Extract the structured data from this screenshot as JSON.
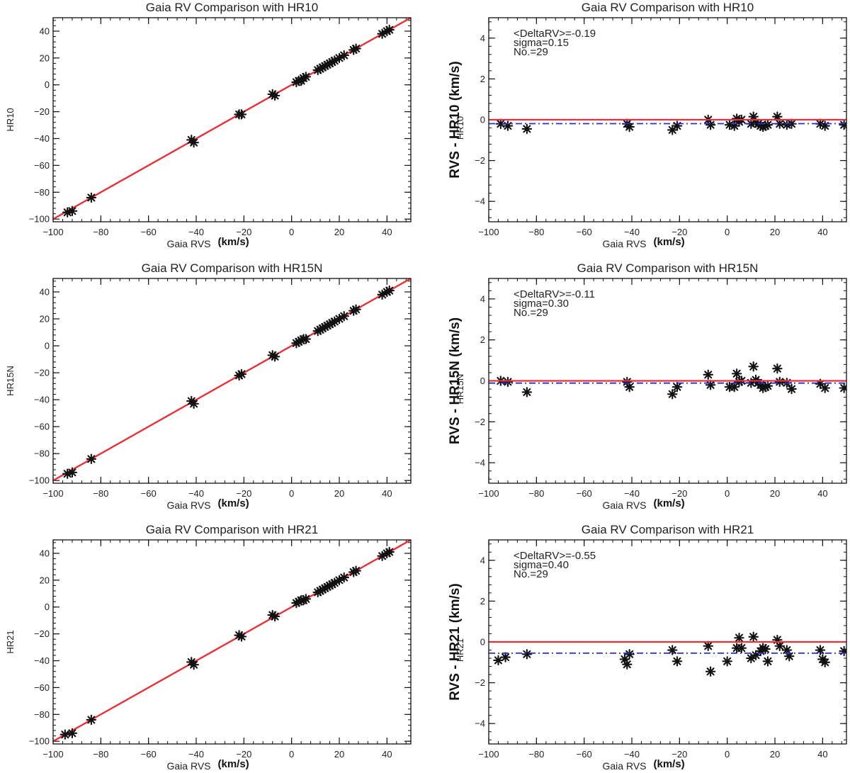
{
  "figure": {
    "colors": {
      "fit_line": "#e8303a",
      "zero_line": "#e8303a",
      "mean_line": "#2233cc",
      "marker": "#111111",
      "axis": "#111111"
    },
    "marker_icon": "asterisk-marker"
  },
  "chart_data": [
    {
      "id": "hr10-scatter",
      "type": "scatter",
      "title": "Gaia RV Comparison with HR10",
      "xlabel": "Gaia RVS",
      "xunit": "(km/s)",
      "ylabel": "HR10",
      "xlim": [
        -100,
        50
      ],
      "ylim": [
        -102,
        50
      ],
      "xticks": [
        -100,
        -80,
        -60,
        -40,
        -20,
        0,
        20,
        40
      ],
      "yticks": [
        -100,
        -80,
        -60,
        -40,
        -20,
        0,
        20,
        40
      ],
      "fit_line": {
        "slope": 1,
        "intercept": 0
      },
      "points": [
        [
          -94,
          -95
        ],
        [
          -92,
          -94
        ],
        [
          -84,
          -84
        ],
        [
          -42,
          -41
        ],
        [
          -41,
          -43
        ],
        [
          -22,
          -22
        ],
        [
          -21,
          -22
        ],
        [
          -8,
          -7
        ],
        [
          -7,
          -8
        ],
        [
          2,
          2
        ],
        [
          3,
          3
        ],
        [
          4,
          3
        ],
        [
          5,
          5
        ],
        [
          6,
          6
        ],
        [
          11,
          11
        ],
        [
          12,
          12
        ],
        [
          13,
          13
        ],
        [
          14,
          14
        ],
        [
          15,
          15
        ],
        [
          16,
          16
        ],
        [
          17,
          17
        ],
        [
          18,
          18
        ],
        [
          20,
          20
        ],
        [
          22,
          22
        ],
        [
          26,
          26
        ],
        [
          27,
          27
        ],
        [
          38,
          38
        ],
        [
          40,
          40
        ],
        [
          41,
          41
        ]
      ]
    },
    {
      "id": "hr10-diff",
      "type": "scatter",
      "title": "Gaia RV Comparison with HR10",
      "xlabel": "Gaia RVS",
      "xunit": "(km/s)",
      "ylabel": "RVS - HR10 (km/s)",
      "ylabel_small": "HR10",
      "xlim": [
        -100,
        50
      ],
      "ylim": [
        -5,
        5
      ],
      "xticks": [
        -100,
        -80,
        -60,
        -40,
        -20,
        0,
        20,
        40
      ],
      "yticks": [
        -4,
        -2,
        0,
        2,
        4
      ],
      "stats": [
        "<DeltaRV>=-0.19",
        "sigma=0.15",
        "No.=29"
      ],
      "mean": -0.19,
      "zero": 0,
      "points": [
        [
          -95,
          -0.2
        ],
        [
          -92,
          -0.3
        ],
        [
          -84,
          -0.45
        ],
        [
          -42,
          -0.2
        ],
        [
          -41,
          -0.35
        ],
        [
          -23,
          -0.5
        ],
        [
          -21,
          -0.3
        ],
        [
          -8,
          0.0
        ],
        [
          -7,
          -0.25
        ],
        [
          1,
          -0.25
        ],
        [
          3,
          -0.3
        ],
        [
          4,
          0.05
        ],
        [
          5,
          -0.1
        ],
        [
          6,
          0.0
        ],
        [
          10,
          -0.2
        ],
        [
          11,
          0.15
        ],
        [
          12,
          -0.15
        ],
        [
          13,
          -0.2
        ],
        [
          14,
          -0.3
        ],
        [
          15,
          -0.35
        ],
        [
          16,
          -0.3
        ],
        [
          17,
          -0.25
        ],
        [
          21,
          0.15
        ],
        [
          22,
          -0.2
        ],
        [
          25,
          -0.25
        ],
        [
          27,
          -0.2
        ],
        [
          39,
          -0.2
        ],
        [
          41,
          -0.3
        ],
        [
          49,
          -0.25
        ]
      ]
    },
    {
      "id": "hr15n-scatter",
      "type": "scatter",
      "title": "Gaia RV Comparison with HR15N",
      "xlabel": "Gaia RVS",
      "xunit": "(km/s)",
      "ylabel": "HR15N",
      "xlim": [
        -100,
        50
      ],
      "ylim": [
        -102,
        50
      ],
      "xticks": [
        -100,
        -80,
        -60,
        -40,
        -20,
        0,
        20,
        40
      ],
      "yticks": [
        -100,
        -80,
        -60,
        -40,
        -20,
        0,
        20,
        40
      ],
      "fit_line": {
        "slope": 1,
        "intercept": 0
      },
      "points": [
        [
          -94,
          -95
        ],
        [
          -92,
          -94
        ],
        [
          -84,
          -84
        ],
        [
          -42,
          -41
        ],
        [
          -41,
          -43
        ],
        [
          -22,
          -22
        ],
        [
          -21,
          -21
        ],
        [
          -8,
          -7
        ],
        [
          -7,
          -8
        ],
        [
          2,
          2
        ],
        [
          3,
          3
        ],
        [
          4,
          4
        ],
        [
          5,
          5
        ],
        [
          6,
          5
        ],
        [
          11,
          11
        ],
        [
          12,
          12
        ],
        [
          13,
          13
        ],
        [
          14,
          14
        ],
        [
          15,
          15
        ],
        [
          16,
          16
        ],
        [
          17,
          17
        ],
        [
          18,
          18
        ],
        [
          20,
          20
        ],
        [
          22,
          22
        ],
        [
          26,
          26
        ],
        [
          27,
          27
        ],
        [
          38,
          38
        ],
        [
          40,
          40
        ],
        [
          41,
          41
        ]
      ]
    },
    {
      "id": "hr15n-diff",
      "type": "scatter",
      "title": "Gaia RV Comparison with HR15N",
      "xlabel": "Gaia RVS",
      "xunit": "(km/s)",
      "ylabel": "RVS - HR15N (km/s)",
      "ylabel_small": "HR15N",
      "xlim": [
        -100,
        50
      ],
      "ylim": [
        -5,
        5
      ],
      "xticks": [
        -100,
        -80,
        -60,
        -40,
        -20,
        0,
        20,
        40
      ],
      "yticks": [
        -4,
        -2,
        0,
        2,
        4
      ],
      "stats": [
        "<DeltaRV>=-0.11",
        "sigma=0.30",
        "No.=29"
      ],
      "mean": -0.11,
      "zero": 0,
      "points": [
        [
          -95,
          0.0
        ],
        [
          -92,
          -0.05
        ],
        [
          -84,
          -0.55
        ],
        [
          -42,
          -0.05
        ],
        [
          -41,
          -0.3
        ],
        [
          -23,
          -0.65
        ],
        [
          -21,
          -0.3
        ],
        [
          -8,
          0.3
        ],
        [
          -7,
          -0.2
        ],
        [
          1,
          -0.3
        ],
        [
          3,
          -0.3
        ],
        [
          4,
          0.35
        ],
        [
          5,
          -0.05
        ],
        [
          6,
          0.0
        ],
        [
          10,
          -0.1
        ],
        [
          11,
          0.7
        ],
        [
          12,
          0.05
        ],
        [
          13,
          -0.1
        ],
        [
          14,
          -0.2
        ],
        [
          15,
          -0.35
        ],
        [
          16,
          -0.3
        ],
        [
          17,
          -0.25
        ],
        [
          21,
          0.6
        ],
        [
          22,
          -0.05
        ],
        [
          25,
          -0.1
        ],
        [
          27,
          -0.4
        ],
        [
          39,
          -0.15
        ],
        [
          41,
          -0.35
        ],
        [
          49,
          -0.35
        ]
      ]
    },
    {
      "id": "hr21-scatter",
      "type": "scatter",
      "title": "Gaia RV Comparison with HR21",
      "xlabel": "Gaia RVS",
      "xunit": "(km/s)",
      "ylabel": "HR21",
      "xlim": [
        -100,
        50
      ],
      "ylim": [
        -102,
        50
      ],
      "xticks": [
        -100,
        -80,
        -60,
        -40,
        -20,
        0,
        20,
        40
      ],
      "yticks": [
        -100,
        -80,
        -60,
        -40,
        -20,
        0,
        20,
        40
      ],
      "fit_line": {
        "slope": 1,
        "intercept": 0
      },
      "points": [
        [
          -95,
          -95
        ],
        [
          -92,
          -94
        ],
        [
          -84,
          -84
        ],
        [
          -42,
          -41
        ],
        [
          -41,
          -43
        ],
        [
          -22,
          -21
        ],
        [
          -21,
          -22
        ],
        [
          -8,
          -6
        ],
        [
          -7,
          -7
        ],
        [
          2,
          3
        ],
        [
          3,
          4
        ],
        [
          4,
          5
        ],
        [
          5,
          5
        ],
        [
          6,
          6
        ],
        [
          11,
          11
        ],
        [
          12,
          12
        ],
        [
          13,
          13
        ],
        [
          14,
          14
        ],
        [
          15,
          15
        ],
        [
          16,
          16
        ],
        [
          17,
          17
        ],
        [
          18,
          18
        ],
        [
          20,
          20
        ],
        [
          22,
          22
        ],
        [
          26,
          26
        ],
        [
          27,
          27
        ],
        [
          38,
          38
        ],
        [
          40,
          40
        ],
        [
          41,
          41
        ]
      ]
    },
    {
      "id": "hr21-diff",
      "type": "scatter",
      "title": "Gaia RV Comparison with HR21",
      "xlabel": "Gaia RVS",
      "xunit": "(km/s)",
      "ylabel": "RVS - HR21 (km/s)",
      "ylabel_small": "HR21",
      "xlim": [
        -100,
        50
      ],
      "ylim": [
        -5,
        5
      ],
      "xticks": [
        -100,
        -80,
        -60,
        -40,
        -20,
        0,
        20,
        40
      ],
      "yticks": [
        -4,
        -2,
        0,
        2,
        4
      ],
      "stats": [
        "<DeltaRV>=-0.55",
        "sigma=0.40",
        "No.=29"
      ],
      "mean": -0.55,
      "zero": 0,
      "points": [
        [
          -96,
          -0.9
        ],
        [
          -93,
          -0.75
        ],
        [
          -84,
          -0.6
        ],
        [
          -43,
          -0.85
        ],
        [
          -42,
          -1.1
        ],
        [
          -41,
          -0.6
        ],
        [
          -23,
          -0.4
        ],
        [
          -21,
          -0.95
        ],
        [
          -8,
          -0.2
        ],
        [
          -7,
          -1.45
        ],
        [
          0,
          -0.95
        ],
        [
          4,
          -0.3
        ],
        [
          5,
          0.2
        ],
        [
          6,
          -0.3
        ],
        [
          10,
          -0.8
        ],
        [
          11,
          0.25
        ],
        [
          12,
          -0.65
        ],
        [
          14,
          -0.45
        ],
        [
          15,
          -0.3
        ],
        [
          16,
          -0.35
        ],
        [
          17,
          -0.95
        ],
        [
          21,
          0.1
        ],
        [
          22,
          -0.2
        ],
        [
          25,
          -0.4
        ],
        [
          26,
          -0.7
        ],
        [
          39,
          -0.4
        ],
        [
          40,
          -0.85
        ],
        [
          41,
          -1.0
        ],
        [
          49,
          -0.45
        ]
      ]
    }
  ]
}
